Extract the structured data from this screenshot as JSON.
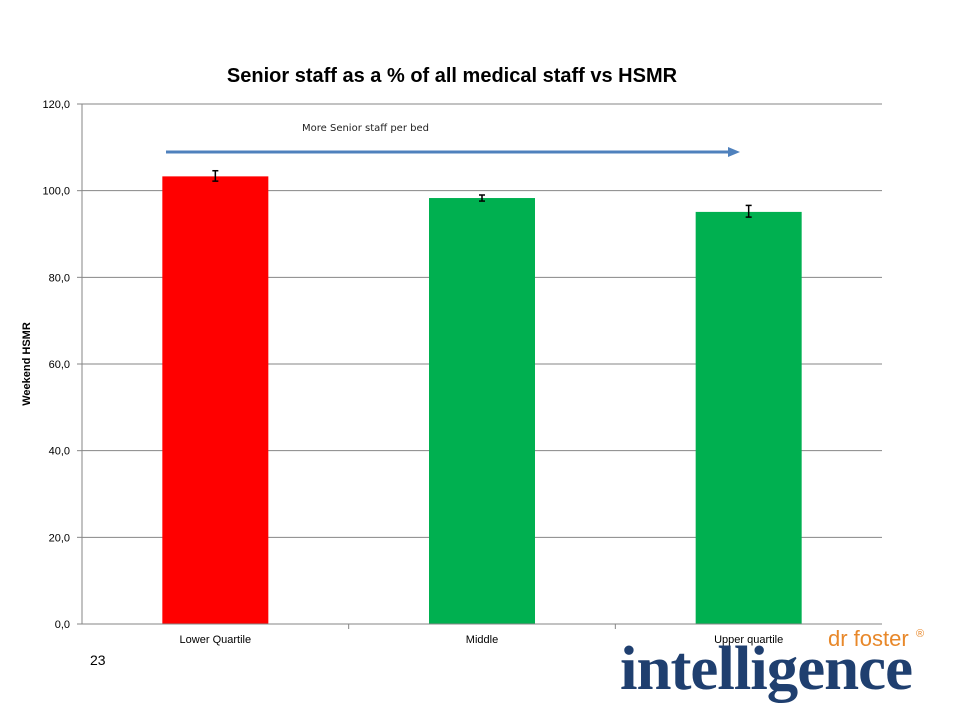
{
  "page": {
    "number": "23"
  },
  "logo": {
    "small_text": "dr foster",
    "mark": "®",
    "word": "intelligence"
  },
  "chart_data": {
    "type": "bar",
    "title": "Senior staff as a % of all medical staff vs HSMR",
    "xlabel": "",
    "ylabel": "Weekend HSMR",
    "categories": [
      "Lower Quartile",
      "Middle",
      "Upper quartile"
    ],
    "values": [
      103.3,
      98.3,
      95.1
    ],
    "error_bars": [
      [
        102.2,
        104.6
      ],
      [
        97.6,
        99.0
      ],
      [
        93.9,
        96.6
      ]
    ],
    "bar_colors": [
      "#ff0000",
      "#00b050",
      "#00b050"
    ],
    "ylim": [
      0,
      120
    ],
    "yticks": [
      0,
      20,
      40,
      60,
      80,
      100,
      120
    ],
    "ytick_labels": [
      "0,0",
      "20,0",
      "40,0",
      "60,0",
      "80,0",
      "100,0",
      "120,0"
    ],
    "grid": true,
    "annotation": {
      "text": "More Senior staff per bed",
      "arrow_color": "#4f81bd"
    }
  },
  "colors": {
    "logo_navy": "#1f3f6f",
    "logo_orange": "#e8882a",
    "grid": "#868686"
  }
}
